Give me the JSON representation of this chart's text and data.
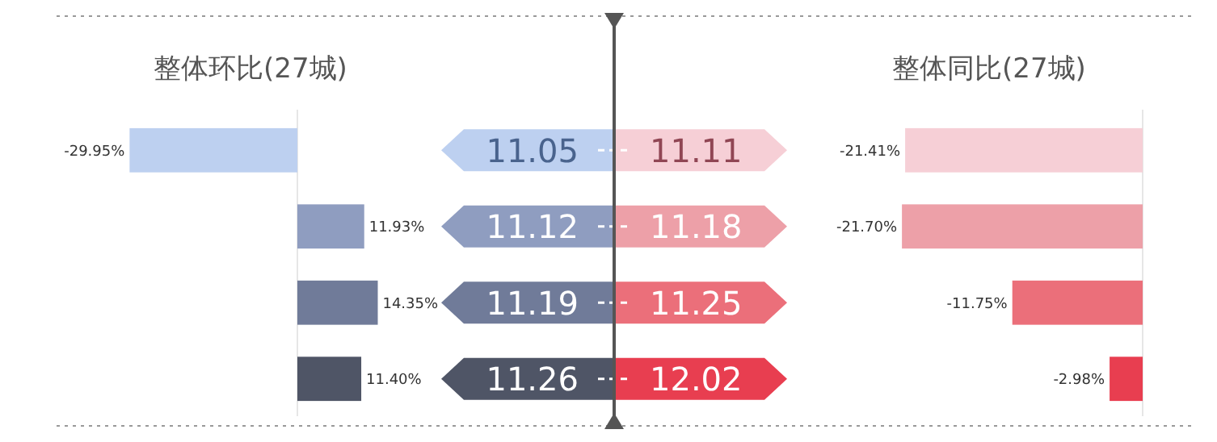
{
  "chart_data": [
    {
      "type": "bar",
      "orientation": "horizontal",
      "title": "整体环比(27城)",
      "categories": [
        "11.05",
        "11.12",
        "11.19",
        "11.26"
      ],
      "values": [
        -29.95,
        11.93,
        14.35,
        11.4
      ],
      "value_labels": [
        "-29.95%",
        "11.93%",
        "14.35%",
        "11.40%"
      ],
      "colors": [
        "#bdd0f0",
        "#8f9dc0",
        "#707b99",
        "#4f5566"
      ],
      "xlim": [
        -30,
        15
      ],
      "tick_labels": "y"
    },
    {
      "type": "bar",
      "orientation": "horizontal",
      "title": "整体同比(27城)",
      "categories": [
        "11.11",
        "11.18",
        "11.25",
        "12.02"
      ],
      "values": [
        -21.41,
        -21.7,
        -11.75,
        -2.98
      ],
      "value_labels": [
        "-21.41%",
        "-21.70%",
        "-11.75%",
        "-2.98%"
      ],
      "colors": [
        "#f6cfd6",
        "#eda0a8",
        "#eb6f7a",
        "#e83e50"
      ],
      "xlim": [
        -22,
        0
      ],
      "tick_labels": "y"
    }
  ]
}
